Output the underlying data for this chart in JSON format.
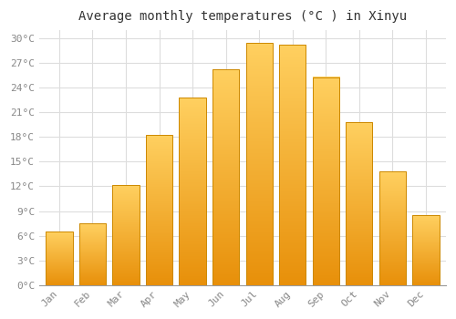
{
  "title": "Average monthly temperatures (°C ) in Xinyu",
  "months": [
    "Jan",
    "Feb",
    "Mar",
    "Apr",
    "May",
    "Jun",
    "Jul",
    "Aug",
    "Sep",
    "Oct",
    "Nov",
    "Dec"
  ],
  "temperatures": [
    6.5,
    7.5,
    12.2,
    18.3,
    22.8,
    26.2,
    29.5,
    29.2,
    25.3,
    19.8,
    13.8,
    8.5
  ],
  "bar_color": "#FFA500",
  "bar_edge_color": "#CC8800",
  "ylim": [
    0,
    31
  ],
  "yticks": [
    0,
    3,
    6,
    9,
    12,
    15,
    18,
    21,
    24,
    27,
    30
  ],
  "background_color": "#FFFFFF",
  "grid_color": "#DDDDDD",
  "title_fontsize": 10,
  "tick_fontsize": 8,
  "tick_color": "#888888",
  "font_family": "monospace",
  "bar_width": 0.8
}
